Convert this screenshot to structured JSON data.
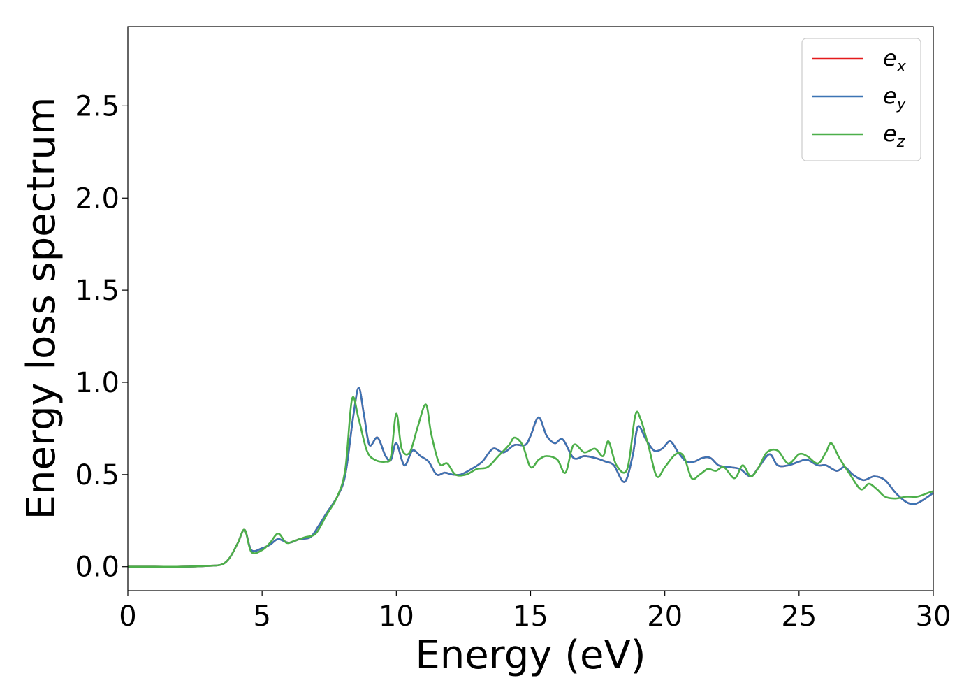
{
  "chart_data": {
    "type": "line",
    "xlabel": "Energy (eV)",
    "ylabel": "Energy loss spectrum",
    "xlim": [
      0,
      30
    ],
    "ylim": [
      -0.13,
      2.93
    ],
    "xticks": [
      0,
      5,
      10,
      15,
      20,
      25,
      30
    ],
    "xtick_labels": [
      "0",
      "5",
      "10",
      "15",
      "20",
      "25",
      "30"
    ],
    "yticks": [
      0.0,
      0.5,
      1.0,
      1.5,
      2.0,
      2.5
    ],
    "ytick_labels": [
      "0.0",
      "0.5",
      "1.0",
      "1.5",
      "2.0",
      "2.5"
    ],
    "grid": false,
    "legend_position": "top-right",
    "series": [
      {
        "name": "e_x",
        "legend_base": "e",
        "legend_sub": "x",
        "color": "#e41a1c",
        "x": [
          0,
          1,
          2,
          3,
          3.5,
          3.8,
          4.1,
          4.35,
          4.6,
          5.0,
          5.3,
          5.6,
          6.0,
          6.4,
          6.8,
          7.1,
          7.4,
          7.8,
          8.1,
          8.4,
          8.6,
          8.8,
          9.0,
          9.3,
          9.6,
          9.8,
          10.0,
          10.3,
          10.6,
          10.9,
          11.2,
          11.5,
          11.8,
          12.1,
          12.4,
          12.8,
          13.2,
          13.6,
          14.0,
          14.4,
          14.8,
          15.0,
          15.3,
          15.6,
          15.9,
          16.2,
          16.6,
          17.0,
          17.4,
          17.8,
          18.1,
          18.5,
          18.8,
          19.0,
          19.3,
          19.6,
          19.9,
          20.2,
          20.5,
          20.8,
          21.1,
          21.4,
          21.7,
          22.0,
          22.4,
          22.8,
          23.2,
          23.5,
          23.9,
          24.2,
          24.6,
          25.0,
          25.3,
          25.7,
          26.0,
          26.4,
          26.7,
          27.0,
          27.4,
          27.8,
          28.2,
          28.6,
          29.0,
          29.3,
          29.6,
          30.0
        ],
        "y": [
          0.0,
          0.0,
          0.0,
          0.005,
          0.012,
          0.05,
          0.13,
          0.2,
          0.09,
          0.1,
          0.12,
          0.15,
          0.13,
          0.15,
          0.16,
          0.22,
          0.29,
          0.38,
          0.5,
          0.82,
          0.97,
          0.82,
          0.66,
          0.7,
          0.6,
          0.58,
          0.67,
          0.55,
          0.63,
          0.6,
          0.57,
          0.5,
          0.51,
          0.5,
          0.5,
          0.53,
          0.57,
          0.64,
          0.62,
          0.66,
          0.66,
          0.71,
          0.81,
          0.71,
          0.67,
          0.69,
          0.59,
          0.6,
          0.59,
          0.57,
          0.55,
          0.46,
          0.6,
          0.76,
          0.69,
          0.63,
          0.64,
          0.68,
          0.62,
          0.57,
          0.57,
          0.59,
          0.59,
          0.55,
          0.54,
          0.53,
          0.49,
          0.54,
          0.61,
          0.55,
          0.55,
          0.57,
          0.58,
          0.55,
          0.55,
          0.52,
          0.54,
          0.5,
          0.47,
          0.49,
          0.47,
          0.4,
          0.35,
          0.34,
          0.36,
          0.4
        ]
      },
      {
        "name": "e_y",
        "legend_base": "e",
        "legend_sub": "y",
        "color": "#3c74b4",
        "x": [
          0,
          1,
          2,
          3,
          3.5,
          3.8,
          4.1,
          4.35,
          4.6,
          5.0,
          5.3,
          5.6,
          6.0,
          6.4,
          6.8,
          7.1,
          7.4,
          7.8,
          8.1,
          8.4,
          8.6,
          8.8,
          9.0,
          9.3,
          9.6,
          9.8,
          10.0,
          10.3,
          10.6,
          10.9,
          11.2,
          11.5,
          11.8,
          12.1,
          12.4,
          12.8,
          13.2,
          13.6,
          14.0,
          14.4,
          14.8,
          15.0,
          15.3,
          15.6,
          15.9,
          16.2,
          16.6,
          17.0,
          17.4,
          17.8,
          18.1,
          18.5,
          18.8,
          19.0,
          19.3,
          19.6,
          19.9,
          20.2,
          20.5,
          20.8,
          21.1,
          21.4,
          21.7,
          22.0,
          22.4,
          22.8,
          23.2,
          23.5,
          23.9,
          24.2,
          24.6,
          25.0,
          25.3,
          25.7,
          26.0,
          26.4,
          26.7,
          27.0,
          27.4,
          27.8,
          28.2,
          28.6,
          29.0,
          29.3,
          29.6,
          30.0
        ],
        "y": [
          0.0,
          0.0,
          0.0,
          0.005,
          0.012,
          0.05,
          0.13,
          0.2,
          0.09,
          0.1,
          0.12,
          0.15,
          0.13,
          0.15,
          0.16,
          0.22,
          0.29,
          0.38,
          0.5,
          0.82,
          0.97,
          0.82,
          0.66,
          0.7,
          0.6,
          0.58,
          0.67,
          0.55,
          0.63,
          0.6,
          0.57,
          0.5,
          0.51,
          0.5,
          0.5,
          0.53,
          0.57,
          0.64,
          0.62,
          0.66,
          0.66,
          0.71,
          0.81,
          0.71,
          0.67,
          0.69,
          0.59,
          0.6,
          0.59,
          0.57,
          0.55,
          0.46,
          0.6,
          0.76,
          0.69,
          0.63,
          0.64,
          0.68,
          0.62,
          0.57,
          0.57,
          0.59,
          0.59,
          0.55,
          0.54,
          0.53,
          0.49,
          0.54,
          0.61,
          0.55,
          0.55,
          0.57,
          0.58,
          0.55,
          0.55,
          0.52,
          0.54,
          0.5,
          0.47,
          0.49,
          0.47,
          0.4,
          0.35,
          0.34,
          0.36,
          0.4
        ]
      },
      {
        "name": "e_z",
        "legend_base": "e",
        "legend_sub": "z",
        "color": "#4daf4a",
        "x": [
          0,
          1,
          2,
          3,
          3.5,
          3.8,
          4.1,
          4.35,
          4.6,
          5.0,
          5.3,
          5.6,
          5.9,
          6.2,
          6.6,
          7.0,
          7.4,
          7.8,
          8.1,
          8.35,
          8.6,
          8.9,
          9.2,
          9.6,
          9.8,
          10.0,
          10.2,
          10.5,
          10.8,
          11.1,
          11.3,
          11.6,
          11.9,
          12.2,
          12.6,
          13.0,
          13.4,
          13.8,
          14.2,
          14.4,
          14.7,
          15.0,
          15.3,
          15.6,
          16.0,
          16.3,
          16.6,
          17.0,
          17.4,
          17.7,
          17.9,
          18.2,
          18.6,
          18.9,
          19.1,
          19.4,
          19.7,
          20.0,
          20.4,
          20.7,
          21.0,
          21.3,
          21.6,
          21.9,
          22.2,
          22.6,
          22.9,
          23.2,
          23.5,
          23.8,
          24.2,
          24.6,
          25.0,
          25.3,
          25.7,
          26.0,
          26.2,
          26.5,
          26.9,
          27.3,
          27.6,
          27.9,
          28.2,
          28.6,
          29.0,
          29.4,
          29.8,
          30.0
        ],
        "y": [
          0.0,
          0.0,
          0.0,
          0.005,
          0.012,
          0.05,
          0.13,
          0.2,
          0.08,
          0.09,
          0.13,
          0.18,
          0.13,
          0.14,
          0.16,
          0.18,
          0.28,
          0.38,
          0.53,
          0.91,
          0.8,
          0.63,
          0.58,
          0.57,
          0.6,
          0.83,
          0.64,
          0.62,
          0.76,
          0.88,
          0.72,
          0.56,
          0.56,
          0.5,
          0.5,
          0.53,
          0.54,
          0.6,
          0.66,
          0.7,
          0.66,
          0.54,
          0.58,
          0.6,
          0.58,
          0.51,
          0.66,
          0.62,
          0.64,
          0.6,
          0.68,
          0.55,
          0.53,
          0.82,
          0.8,
          0.65,
          0.49,
          0.54,
          0.61,
          0.6,
          0.48,
          0.5,
          0.53,
          0.52,
          0.54,
          0.48,
          0.55,
          0.49,
          0.54,
          0.62,
          0.63,
          0.56,
          0.61,
          0.6,
          0.56,
          0.62,
          0.67,
          0.59,
          0.5,
          0.42,
          0.45,
          0.42,
          0.38,
          0.37,
          0.38,
          0.38,
          0.4,
          0.41
        ]
      }
    ]
  }
}
